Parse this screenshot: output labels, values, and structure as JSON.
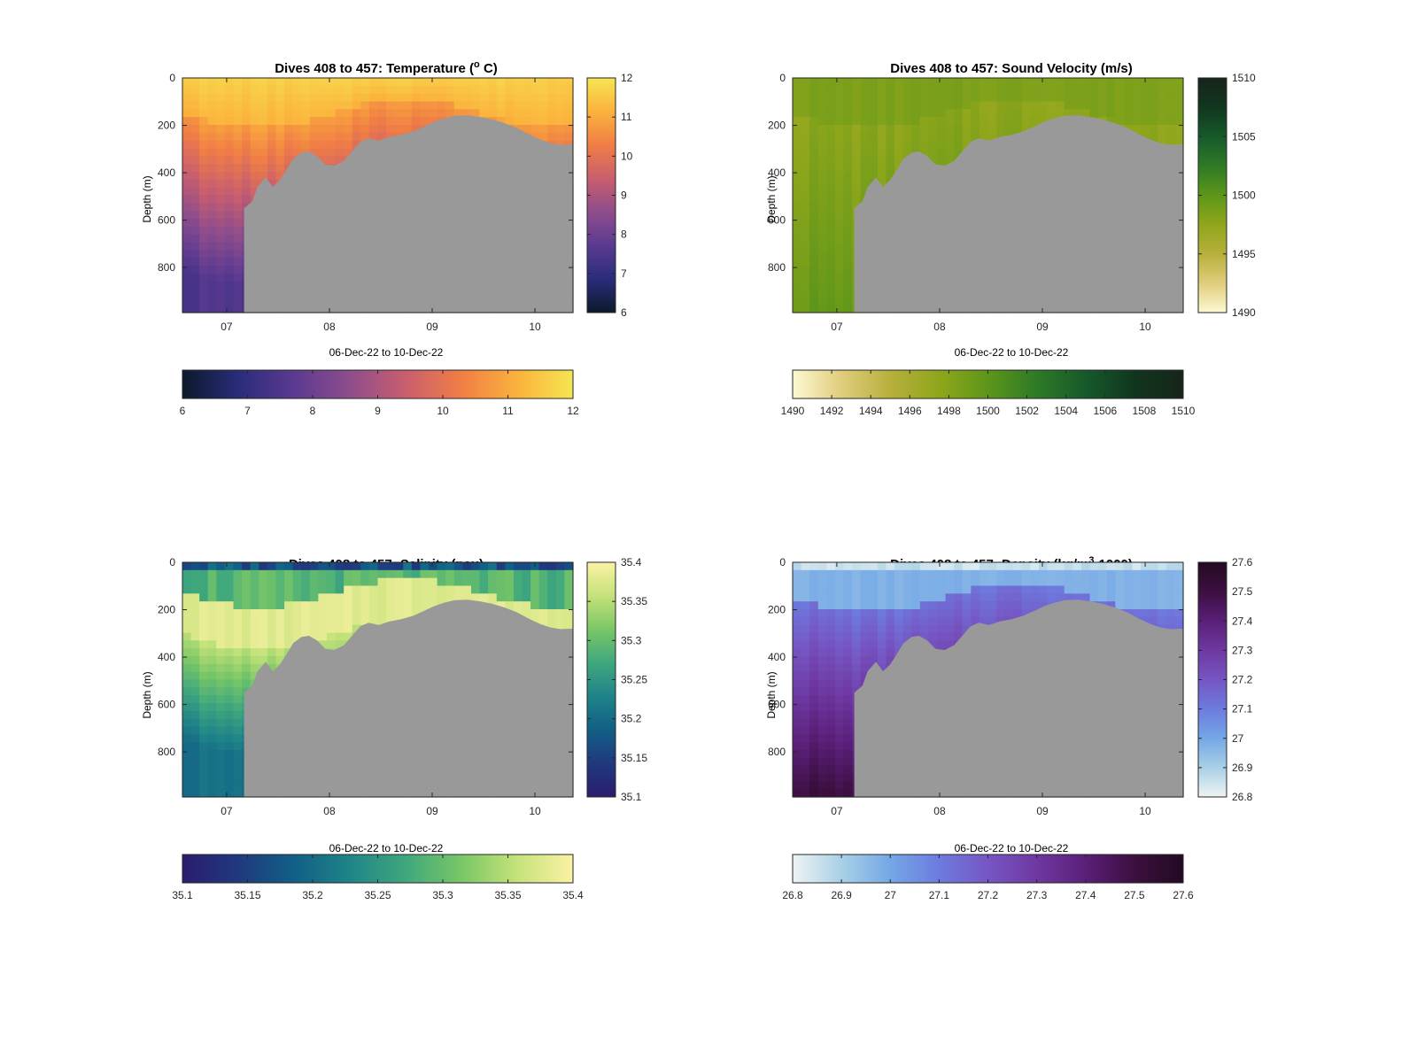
{
  "figure": {
    "background": "#ffffff"
  },
  "chart_data": [
    {
      "id": "temperature",
      "type": "heatmap",
      "title": "Dives 408 to 457: Temperature (",
      "title_sup": "o",
      "title_end": " C)",
      "xlabel": "06-Dec-22 to 10-Dec-22",
      "ylabel": "Depth (m)",
      "x_ticks": [
        "07",
        "08",
        "09",
        "10"
      ],
      "y_ticks": [
        "0",
        "200",
        "400",
        "600",
        "800"
      ],
      "xlim_days": [
        6.57,
        10.37
      ],
      "ylim": [
        0,
        990
      ],
      "clim": [
        6,
        12
      ],
      "colorbar_ticks": [
        "6",
        "7",
        "8",
        "9",
        "10",
        "11",
        "12"
      ],
      "h_colorbar_ticks": [
        "6",
        "7",
        "8",
        "9",
        "10",
        "11",
        "12"
      ],
      "colormap": [
        "#0b1a2b",
        "#2a2c7a",
        "#5b3a91",
        "#8e4d8c",
        "#c95e6e",
        "#f07e45",
        "#fbb23c",
        "#f6e552"
      ]
    },
    {
      "id": "sound-velocity",
      "type": "heatmap",
      "title": "Dives 408 to 457: Sound Velocity (m/s)",
      "xlabel": "06-Dec-22 to 10-Dec-22",
      "ylabel": "Depth (m)",
      "x_ticks": [
        "07",
        "08",
        "09",
        "10"
      ],
      "y_ticks": [
        "0",
        "200",
        "400",
        "600",
        "800"
      ],
      "xlim_days": [
        6.57,
        10.37
      ],
      "ylim": [
        0,
        990
      ],
      "clim": [
        1490,
        1510
      ],
      "colorbar_ticks": [
        "1490",
        "1495",
        "1500",
        "1505",
        "1510"
      ],
      "h_colorbar_ticks": [
        "1490",
        "1492",
        "1494",
        "1496",
        "1498",
        "1500",
        "1502",
        "1504",
        "1506",
        "1508",
        "1510"
      ],
      "colormap": [
        "#fdf8d2",
        "#e0cd7c",
        "#b7b03c",
        "#8fa61b",
        "#5d961a",
        "#2e7a26",
        "#165a2b",
        "#11361e",
        "#17251a"
      ]
    },
    {
      "id": "salinity",
      "type": "heatmap",
      "title": "Dives 408 to 457: Salinity (psu)",
      "xlabel": "06-Dec-22 to 10-Dec-22",
      "ylabel": "Depth (m)",
      "x_ticks": [
        "07",
        "08",
        "09",
        "10"
      ],
      "y_ticks": [
        "0",
        "200",
        "400",
        "600",
        "800"
      ],
      "xlim_days": [
        6.57,
        10.37
      ],
      "ylim": [
        0,
        990
      ],
      "clim": [
        35.1,
        35.4
      ],
      "colorbar_ticks": [
        "35.1",
        "35.15",
        "35.2",
        "35.25",
        "35.3",
        "35.35",
        "35.4"
      ],
      "h_colorbar_ticks": [
        "35.1",
        "35.15",
        "35.2",
        "35.25",
        "35.3",
        "35.35",
        "35.4"
      ],
      "colormap": [
        "#2b1c6e",
        "#20397e",
        "#115f86",
        "#1f8488",
        "#3fa77d",
        "#79c766",
        "#c5e27a",
        "#fbf2a5"
      ]
    },
    {
      "id": "density",
      "type": "heatmap",
      "title": "Dives 408 to 457: Density (kg/m",
      "title_sup": "3",
      "title_end": "-1000)",
      "xlabel": "06-Dec-22 to 10-Dec-22",
      "ylabel": "Depth (m)",
      "x_ticks": [
        "07",
        "08",
        "09",
        "10"
      ],
      "y_ticks": [
        "0",
        "200",
        "400",
        "600",
        "800"
      ],
      "xlim_days": [
        6.57,
        10.37
      ],
      "ylim": [
        0,
        990
      ],
      "clim": [
        26.8,
        27.6
      ],
      "colorbar_ticks": [
        "26.8",
        "26.9",
        "27",
        "27.1",
        "27.2",
        "27.3",
        "27.4",
        "27.5",
        "27.6"
      ],
      "h_colorbar_ticks": [
        "26.8",
        "26.9",
        "27",
        "27.1",
        "27.2",
        "27.3",
        "27.4",
        "27.5",
        "27.6"
      ],
      "colormap": [
        "#eef4f4",
        "#a9d0e6",
        "#74a7e6",
        "#6d7bdf",
        "#7656c3",
        "#6e38a1",
        "#5a1f78",
        "#3c0f40",
        "#230a22"
      ]
    }
  ]
}
